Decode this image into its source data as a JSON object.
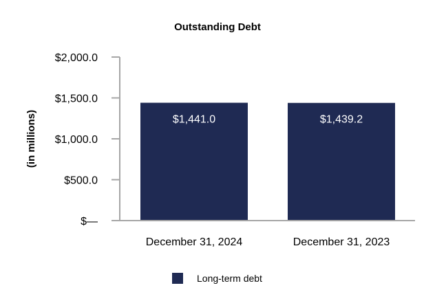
{
  "chart_data": {
    "type": "bar",
    "title": "Outstanding Debt",
    "xlabel": "",
    "ylabel": "(in millions)",
    "categories": [
      "December 31, 2024",
      "December 31, 2023"
    ],
    "series": [
      {
        "name": "Long-term debt",
        "values": [
          1441.0,
          1439.2
        ],
        "color": "#1f2a53"
      }
    ],
    "data_labels": [
      "$1,441.0",
      "$1,439.2"
    ],
    "ylim": [
      0,
      2000
    ],
    "yticks": [
      0,
      500,
      1000,
      1500,
      2000
    ],
    "ytick_labels": [
      "$—",
      "$500.0",
      "$1,000.0",
      "$1,500.0",
      "$2,000.0"
    ],
    "grid": false,
    "legend_position": "bottom"
  }
}
